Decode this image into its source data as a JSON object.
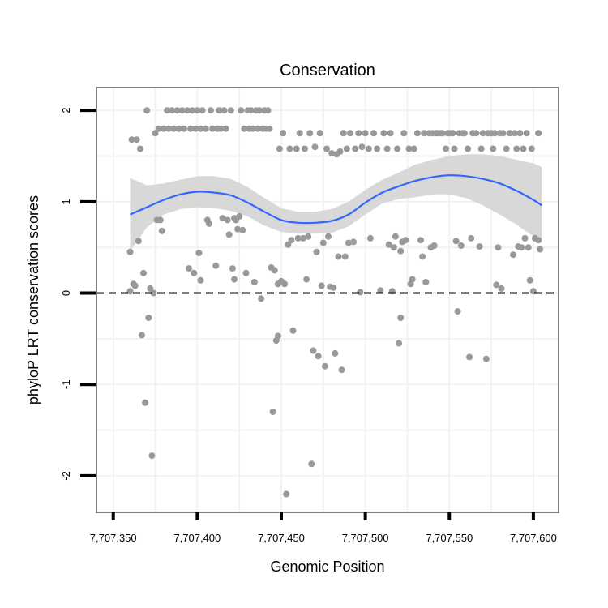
{
  "chart_data": {
    "type": "scatter",
    "title": "Conservation",
    "xlabel": "Genomic Position",
    "ylabel": "phyloP LRT conservation scores",
    "xlim": [
      7707340,
      7707615
    ],
    "ylim": [
      -2.4,
      2.25
    ],
    "x_ticks": [
      7707350,
      7707400,
      7707450,
      7707500,
      7707550,
      7707600
    ],
    "x_tick_labels": [
      "7,707,350",
      "7,707,400",
      "7,707,450",
      "7,707,500",
      "7,707,550",
      "7,707,600"
    ],
    "y_ticks": [
      -2,
      -1,
      0,
      1,
      2
    ],
    "y_tick_labels": [
      "-2",
      "-1",
      "0",
      "1",
      "2"
    ],
    "reference_line": {
      "y": 0,
      "style": "dashed",
      "color": "#000000"
    },
    "colors": {
      "points": "#999999",
      "smooth_line": "#3366ff",
      "ribbon": "#d6d6d6",
      "panel_border": "#7f7f7f",
      "grid": "#f2f2f2"
    },
    "series": [
      {
        "name": "scores",
        "kind": "points",
        "points": [
          [
            7707360,
            0.02
          ],
          [
            7707360,
            0.45
          ],
          [
            7707361,
            1.68
          ],
          [
            7707362,
            0.1
          ],
          [
            7707363,
            0.08
          ],
          [
            7707364,
            1.68
          ],
          [
            7707365,
            0.57
          ],
          [
            7707366,
            1.58
          ],
          [
            7707367,
            -0.46
          ],
          [
            7707368,
            0.22
          ],
          [
            7707369,
            -1.2
          ],
          [
            7707370,
            2.0
          ],
          [
            7707371,
            -0.27
          ],
          [
            7707372,
            0.05
          ],
          [
            7707373,
            -1.78
          ],
          [
            7707374,
            0.0
          ],
          [
            7707375,
            1.75
          ],
          [
            7707376,
            0.8
          ],
          [
            7707377,
            1.8
          ],
          [
            7707378,
            0.8
          ],
          [
            7707379,
            0.68
          ],
          [
            7707380,
            1.8
          ],
          [
            7707382,
            2.0
          ],
          [
            7707383,
            1.8
          ],
          [
            7707385,
            2.0
          ],
          [
            7707386,
            1.8
          ],
          [
            7707388,
            2.0
          ],
          [
            7707389,
            1.8
          ],
          [
            7707391,
            2.0
          ],
          [
            7707392,
            1.8
          ],
          [
            7707394,
            2.0
          ],
          [
            7707395,
            0.27
          ],
          [
            7707396,
            1.8
          ],
          [
            7707397,
            2.0
          ],
          [
            7707398,
            0.22
          ],
          [
            7707399,
            1.8
          ],
          [
            7707400,
            2.0
          ],
          [
            7707401,
            0.44
          ],
          [
            7707402,
            1.8
          ],
          [
            7707402,
            0.14
          ],
          [
            7707403,
            2.0
          ],
          [
            7707405,
            1.8
          ],
          [
            7707406,
            0.8
          ],
          [
            7707407,
            0.76
          ],
          [
            7707408,
            2.0
          ],
          [
            7707409,
            1.8
          ],
          [
            7707411,
            0.3
          ],
          [
            7707412,
            1.8
          ],
          [
            7707413,
            2.0
          ],
          [
            7707414,
            1.8
          ],
          [
            7707415,
            0.82
          ],
          [
            7707416,
            2.0
          ],
          [
            7707417,
            1.8
          ],
          [
            7707418,
            0.8
          ],
          [
            7707419,
            0.64
          ],
          [
            7707420,
            2.0
          ],
          [
            7707421,
            0.27
          ],
          [
            7707422,
            0.82
          ],
          [
            7707422,
            0.15
          ],
          [
            7707423,
            0.8
          ],
          [
            7707424,
            0.7
          ],
          [
            7707425,
            0.84
          ],
          [
            7707426,
            2.0
          ],
          [
            7707427,
            0.69
          ],
          [
            7707428,
            1.8
          ],
          [
            7707429,
            0.22
          ],
          [
            7707430,
            2.0
          ],
          [
            7707431,
            1.8
          ],
          [
            7707432,
            2.0
          ],
          [
            7707433,
            1.8
          ],
          [
            7707434,
            0.12
          ],
          [
            7707435,
            2.0
          ],
          [
            7707436,
            1.8
          ],
          [
            7707437,
            2.0
          ],
          [
            7707438,
            -0.06
          ],
          [
            7707439,
            1.8
          ],
          [
            7707440,
            2.0
          ],
          [
            7707441,
            1.8
          ],
          [
            7707442,
            2.0
          ],
          [
            7707443,
            1.8
          ],
          [
            7707444,
            0.28
          ],
          [
            7707445,
            -1.3
          ],
          [
            7707446,
            0.25
          ],
          [
            7707447,
            -0.52
          ],
          [
            7707448,
            0.1
          ],
          [
            7707448,
            -0.47
          ],
          [
            7707449,
            1.58
          ],
          [
            7707450,
            0.13
          ],
          [
            7707451,
            1.75
          ],
          [
            7707452,
            0.1
          ],
          [
            7707453,
            -2.2
          ],
          [
            7707454,
            0.53
          ],
          [
            7707455,
            1.58
          ],
          [
            7707456,
            0.58
          ],
          [
            7707457,
            -0.41
          ],
          [
            7707459,
            1.58
          ],
          [
            7707460,
            0.6
          ],
          [
            7707461,
            1.75
          ],
          [
            7707463,
            0.6
          ],
          [
            7707464,
            1.58
          ],
          [
            7707465,
            0.15
          ],
          [
            7707466,
            0.62
          ],
          [
            7707467,
            1.75
          ],
          [
            7707468,
            -1.87
          ],
          [
            7707469,
            -0.63
          ],
          [
            7707470,
            1.6
          ],
          [
            7707471,
            0.45
          ],
          [
            7707472,
            -0.69
          ],
          [
            7707473,
            1.75
          ],
          [
            7707474,
            0.08
          ],
          [
            7707475,
            0.55
          ],
          [
            7707476,
            -0.8
          ],
          [
            7707477,
            1.58
          ],
          [
            7707478,
            0.62
          ],
          [
            7707479,
            0.07
          ],
          [
            7707480,
            1.53
          ],
          [
            7707481,
            0.06
          ],
          [
            7707482,
            -0.66
          ],
          [
            7707483,
            1.52
          ],
          [
            7707484,
            0.4
          ],
          [
            7707485,
            1.55
          ],
          [
            7707486,
            -0.84
          ],
          [
            7707487,
            1.75
          ],
          [
            7707488,
            0.4
          ],
          [
            7707489,
            1.58
          ],
          [
            7707490,
            0.55
          ],
          [
            7707491,
            1.75
          ],
          [
            7707493,
            0.56
          ],
          [
            7707494,
            1.58
          ],
          [
            7707496,
            1.75
          ],
          [
            7707497,
            0.01
          ],
          [
            7707498,
            1.6
          ],
          [
            7707500,
            1.75
          ],
          [
            7707502,
            1.58
          ],
          [
            7707503,
            0.6
          ],
          [
            7707505,
            1.75
          ],
          [
            7707507,
            1.58
          ],
          [
            7707509,
            0.03
          ],
          [
            7707511,
            1.75
          ],
          [
            7707513,
            1.58
          ],
          [
            7707514,
            0.53
          ],
          [
            7707515,
            1.75
          ],
          [
            7707516,
            0.02
          ],
          [
            7707517,
            0.5
          ],
          [
            7707518,
            0.62
          ],
          [
            7707519,
            1.58
          ],
          [
            7707520,
            -0.55
          ],
          [
            7707521,
            0.46
          ],
          [
            7707521,
            -0.27
          ],
          [
            7707522,
            0.56
          ],
          [
            7707523,
            1.75
          ],
          [
            7707524,
            0.58
          ],
          [
            7707526,
            1.58
          ],
          [
            7707527,
            0.1
          ],
          [
            7707528,
            0.15
          ],
          [
            7707529,
            1.58
          ],
          [
            7707531,
            1.75
          ],
          [
            7707533,
            0.58
          ],
          [
            7707534,
            0.4
          ],
          [
            7707535,
            1.75
          ],
          [
            7707536,
            0.12
          ],
          [
            7707538,
            1.75
          ],
          [
            7707539,
            0.5
          ],
          [
            7707540,
            1.75
          ],
          [
            7707541,
            0.52
          ],
          [
            7707542,
            1.75
          ],
          [
            7707543,
            1.75
          ],
          [
            7707545,
            1.75
          ],
          [
            7707546,
            1.75
          ],
          [
            7707548,
            1.58
          ],
          [
            7707549,
            1.75
          ],
          [
            7707550,
            1.75
          ],
          [
            7707552,
            1.75
          ],
          [
            7707553,
            1.58
          ],
          [
            7707554,
            0.57
          ],
          [
            7707555,
            -0.2
          ],
          [
            7707556,
            1.75
          ],
          [
            7707557,
            0.52
          ],
          [
            7707558,
            1.75
          ],
          [
            7707559,
            1.75
          ],
          [
            7707561,
            1.58
          ],
          [
            7707562,
            -0.7
          ],
          [
            7707563,
            0.6
          ],
          [
            7707564,
            1.75
          ],
          [
            7707566,
            1.75
          ],
          [
            7707568,
            0.51
          ],
          [
            7707569,
            1.58
          ],
          [
            7707570,
            1.75
          ],
          [
            7707572,
            -0.72
          ],
          [
            7707573,
            1.75
          ],
          [
            7707575,
            1.75
          ],
          [
            7707576,
            1.58
          ],
          [
            7707577,
            1.75
          ],
          [
            7707578,
            0.09
          ],
          [
            7707579,
            0.5
          ],
          [
            7707580,
            1.75
          ],
          [
            7707581,
            0.05
          ],
          [
            7707582,
            1.75
          ],
          [
            7707584,
            1.58
          ],
          [
            7707586,
            1.75
          ],
          [
            7707588,
            0.42
          ],
          [
            7707589,
            1.75
          ],
          [
            7707590,
            1.58
          ],
          [
            7707591,
            0.51
          ],
          [
            7707592,
            1.75
          ],
          [
            7707593,
            0.5
          ],
          [
            7707594,
            1.58
          ],
          [
            7707595,
            0.6
          ],
          [
            7707596,
            1.75
          ],
          [
            7707597,
            0.5
          ],
          [
            7707598,
            0.14
          ],
          [
            7707599,
            1.58
          ],
          [
            7707600,
            0.02
          ],
          [
            7707601,
            0.6
          ],
          [
            7707603,
            1.75
          ],
          [
            7707603,
            0.58
          ],
          [
            7707604,
            0.48
          ]
        ]
      },
      {
        "name": "smooth",
        "kind": "line",
        "x": [
          7707360,
          7707370,
          7707380,
          7707390,
          7707400,
          7707410,
          7707420,
          7707430,
          7707440,
          7707450,
          7707460,
          7707470,
          7707480,
          7707490,
          7707500,
          7707510,
          7707520,
          7707530,
          7707540,
          7707550,
          7707560,
          7707570,
          7707580,
          7707590,
          7707600,
          7707605
        ],
        "y": [
          0.86,
          0.94,
          1.02,
          1.08,
          1.11,
          1.1,
          1.07,
          0.99,
          0.89,
          0.8,
          0.77,
          0.77,
          0.79,
          0.86,
          0.99,
          1.1,
          1.17,
          1.23,
          1.27,
          1.29,
          1.28,
          1.25,
          1.2,
          1.12,
          1.02,
          0.96
        ],
        "lower": [
          0.46,
          0.72,
          0.86,
          0.92,
          0.94,
          0.93,
          0.9,
          0.84,
          0.74,
          0.67,
          0.65,
          0.65,
          0.66,
          0.73,
          0.86,
          0.98,
          1.03,
          1.05,
          1.08,
          1.08,
          1.04,
          0.96,
          0.86,
          0.75,
          0.62,
          0.55
        ],
        "upper": [
          1.26,
          1.18,
          1.2,
          1.24,
          1.28,
          1.28,
          1.25,
          1.16,
          1.04,
          0.93,
          0.89,
          0.89,
          0.92,
          1.0,
          1.13,
          1.24,
          1.32,
          1.41,
          1.46,
          1.5,
          1.52,
          1.52,
          1.5,
          1.46,
          1.42,
          1.38
        ]
      }
    ]
  }
}
